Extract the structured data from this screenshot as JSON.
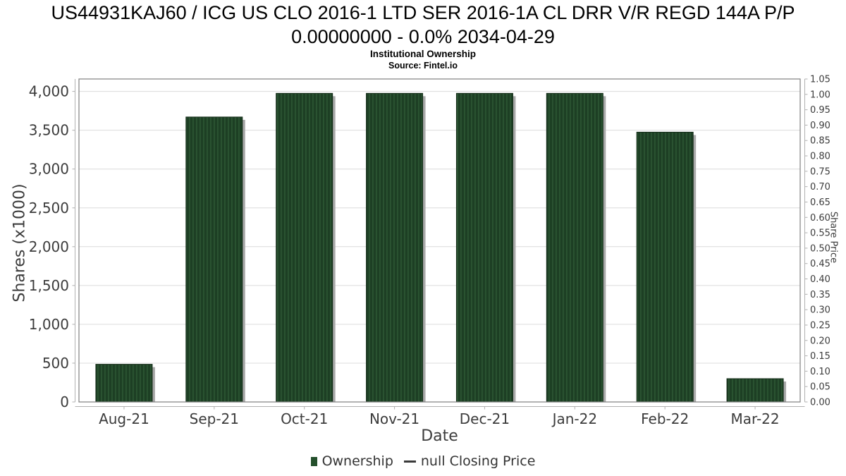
{
  "header": {
    "title_line1": "US44931KAJ60 / ICG US CLO 2016-1 LTD SER 2016-1A CL DRR V/R REGD 144A P/P",
    "title_line2": "0.00000000 - 0.0% 2034-04-29",
    "subtitle": "Institutional Ownership",
    "source": "Source: Fintel.io"
  },
  "chart_data": {
    "type": "bar",
    "title": "US44931KAJ60 / ICG US CLO 2016-1 LTD SER 2016-1A CL DRR V/R REGD 144A P/P 0.00000000 - 0.0% 2034-04-29",
    "subtitle": "Institutional Ownership",
    "source": "Source: Fintel.io",
    "categories": [
      "Aug-21",
      "Sep-21",
      "Oct-21",
      "Nov-21",
      "Dec-21",
      "Jan-22",
      "Feb-22",
      "Mar-22"
    ],
    "series": [
      {
        "name": "Ownership",
        "type": "bar",
        "values": [
          485,
          3670,
          3975,
          3975,
          3975,
          3975,
          3475,
          300
        ]
      },
      {
        "name": "null Closing Price",
        "type": "line",
        "values": []
      }
    ],
    "xlabel": "Date",
    "ylabel_left": "Shares (x1000)",
    "ylabel_right": "Share Price",
    "y_left": {
      "min": 0,
      "axis_max": 4160,
      "ticks": [
        0,
        500,
        1000,
        1500,
        2000,
        2500,
        3000,
        3500,
        4000
      ],
      "tick_labels": [
        "0",
        "500",
        "1,000",
        "1,500",
        "2,000",
        "2,500",
        "3,000",
        "3,500",
        "4,000"
      ]
    },
    "y_right": {
      "min": 0,
      "step": 0.05,
      "max": 1.05,
      "tick_labels": [
        "0.00",
        "0.05",
        "0.10",
        "0.15",
        "0.20",
        "0.25",
        "0.30",
        "0.35",
        "0.40",
        "0.45",
        "0.50",
        "0.55",
        "0.60",
        "0.65",
        "0.70",
        "0.75",
        "0.80",
        "0.85",
        "0.90",
        "0.95",
        "1.00",
        "1.05"
      ]
    },
    "grid": true,
    "legend_position": "bottom",
    "colors": {
      "bar": "#1d3f24",
      "bar_stripe": "#2e5a36",
      "bar_edge": "#142c18",
      "legend_swatch": "#24502c",
      "shadow": "#a9a9a9",
      "grid": "#dcdcdc",
      "border": "#808080",
      "axis": "#b0b0b0",
      "tick_text": "#3c3c3c",
      "dash": "#3a3a3a"
    }
  },
  "legend": {
    "items": [
      {
        "label": "Ownership",
        "swatch": "square"
      },
      {
        "label": "null Closing Price",
        "swatch": "dash"
      }
    ]
  }
}
